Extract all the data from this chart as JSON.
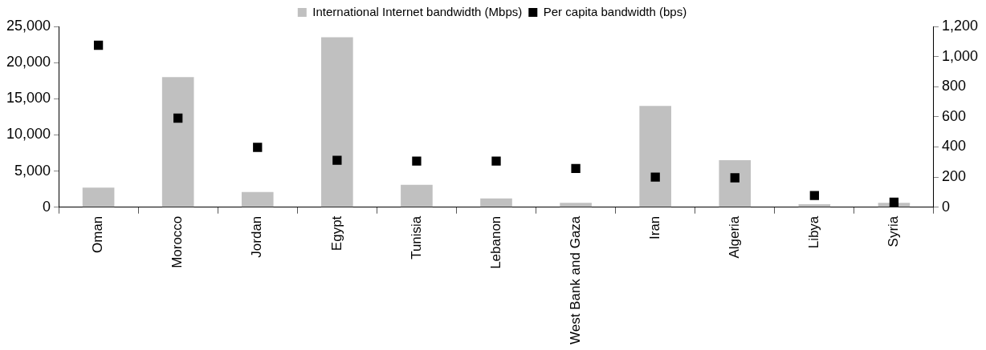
{
  "chart_data": {
    "type": "bar",
    "categories": [
      "Oman",
      "Morocco",
      "Jordan",
      "Egypt",
      "Tunisia",
      "Lebanon",
      "West Bank and Gaza",
      "Iran",
      "Algeria",
      "Libya",
      "Syria"
    ],
    "series": [
      {
        "name": "International Internet bandwidth (Mbps)",
        "color": "#c0c0c0",
        "values": [
          2700,
          18000,
          2100,
          23500,
          3100,
          1200,
          600,
          14000,
          6500,
          400,
          600
        ]
      },
      {
        "name": "Per capita bandwidth (bps)",
        "type": "scatter",
        "axis": "y2",
        "color": "#000000",
        "values": [
          1075,
          591,
          397,
          311,
          306,
          306,
          257,
          200,
          195,
          77,
          33
        ]
      }
    ],
    "ylim": [
      0,
      25000
    ],
    "yticks": [
      {
        "value": 0,
        "label": "0"
      },
      {
        "value": 5000,
        "label": "5,000"
      },
      {
        "value": 10000,
        "label": "10,000"
      },
      {
        "value": 15000,
        "label": "15,000"
      },
      {
        "value": 20000,
        "label": "20,000"
      },
      {
        "value": 25000,
        "label": "25,000"
      }
    ],
    "y2lim": [
      0,
      1200
    ],
    "y2ticks": [
      {
        "value": 0,
        "label": "0"
      },
      {
        "value": 200,
        "label": "200"
      },
      {
        "value": 400,
        "label": "400"
      },
      {
        "value": 600,
        "label": "600"
      },
      {
        "value": 800,
        "label": "800"
      },
      {
        "value": 1000,
        "label": "1,000"
      },
      {
        "value": 1200,
        "label": "1,200"
      }
    ],
    "marker": "square",
    "grid": false,
    "legend": "top"
  }
}
